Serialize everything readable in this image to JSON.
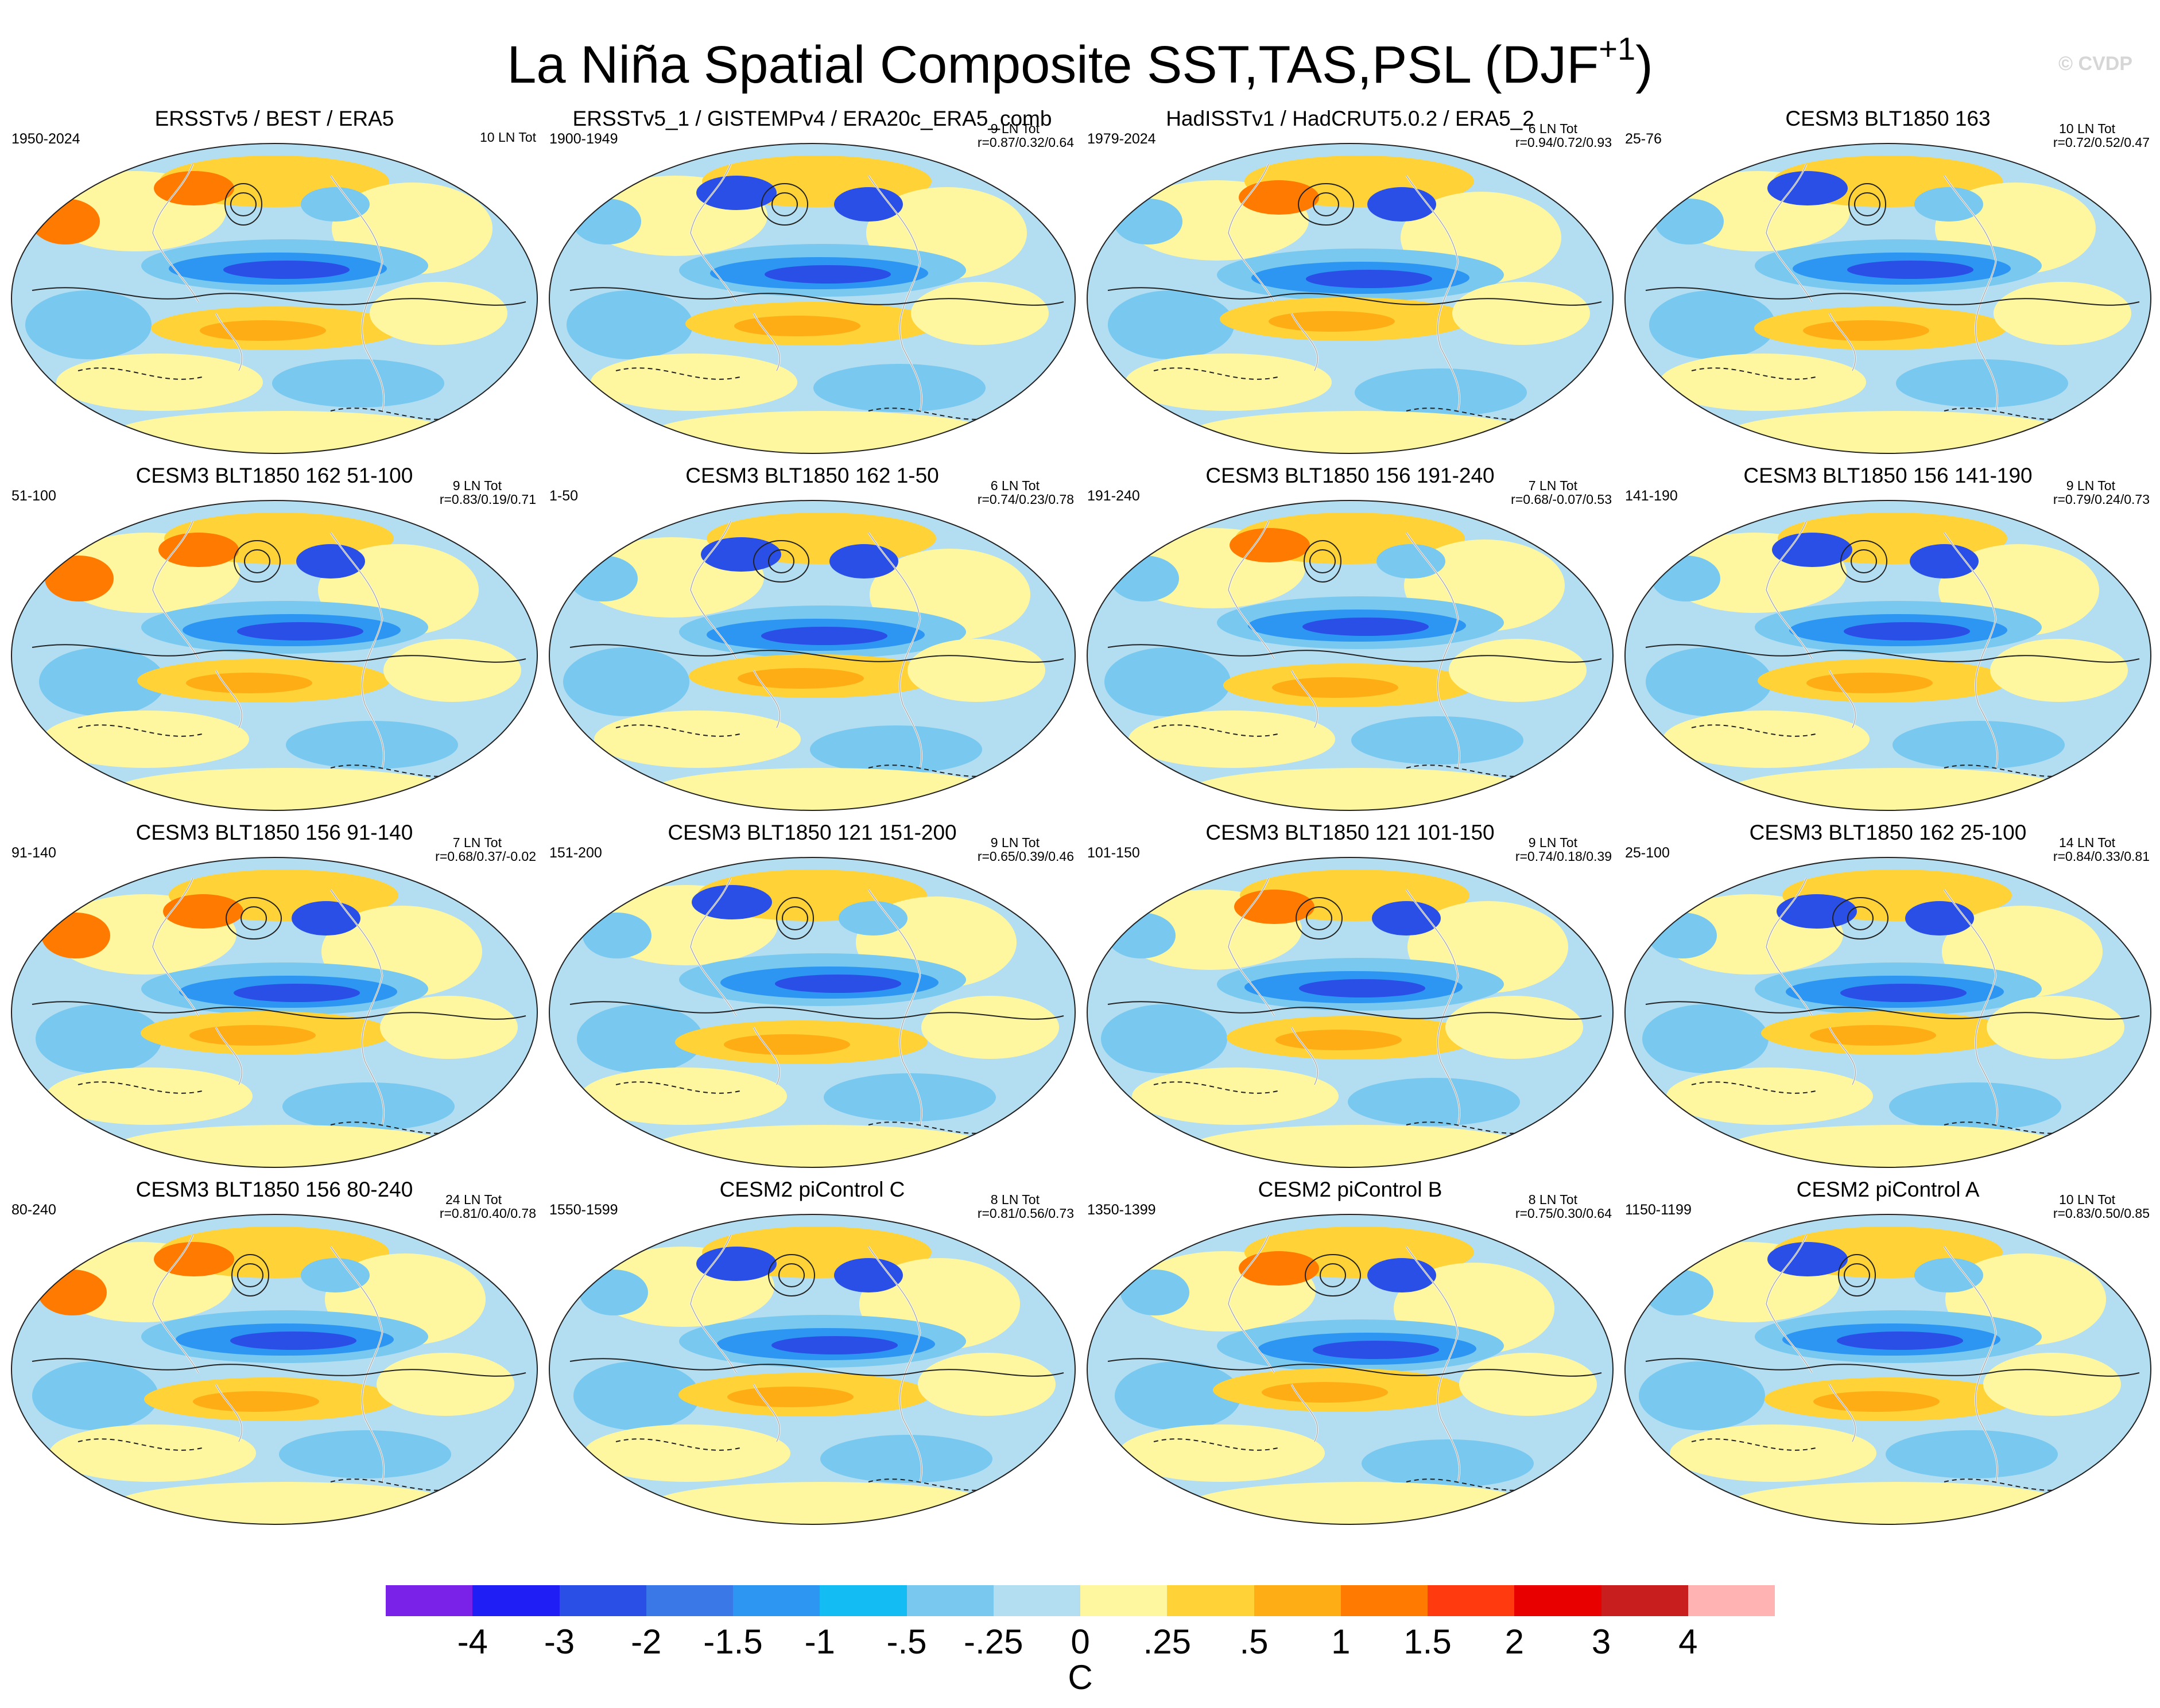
{
  "title_main": "La Niña Spatial Composite SST,TAS,PSL (DJF",
  "title_sup": "+1",
  "title_close": ")",
  "watermark": "© CVDP",
  "panels": [
    {
      "title": "ERSSTv5 / BEST / ERA5",
      "years": "1950-2024",
      "ln": "10 LN Tot",
      "r": ""
    },
    {
      "title": "ERSSTv5_1 / GISTEMPv4 / ERA20c_ERA5_comb",
      "years": "1900-1949",
      "ln": "9 LN Tot",
      "r": "r=0.87/0.32/0.64"
    },
    {
      "title": "HadISSTv1 / HadCRUT5.0.2 / ERA5_2",
      "years": "1979-2024",
      "ln": "6 LN Tot",
      "r": "r=0.94/0.72/0.93"
    },
    {
      "title": "CESM3 BLT1850 163",
      "years": "25-76",
      "ln": "10 LN Tot",
      "r": "r=0.72/0.52/0.47"
    },
    {
      "title": "CESM3 BLT1850 162 51-100",
      "years": "51-100",
      "ln": "9 LN Tot",
      "r": "r=0.83/0.19/0.71"
    },
    {
      "title": "CESM3 BLT1850 162 1-50",
      "years": "1-50",
      "ln": "6 LN Tot",
      "r": "r=0.74/0.23/0.78"
    },
    {
      "title": "CESM3 BLT1850 156 191-240",
      "years": "191-240",
      "ln": "7 LN Tot",
      "r": "r=0.68/-0.07/0.53"
    },
    {
      "title": "CESM3 BLT1850 156 141-190",
      "years": "141-190",
      "ln": "9 LN Tot",
      "r": "r=0.79/0.24/0.73"
    },
    {
      "title": "CESM3 BLT1850 156 91-140",
      "years": "91-140",
      "ln": "7 LN Tot",
      "r": "r=0.68/0.37/-0.02"
    },
    {
      "title": "CESM3 BLT1850 121 151-200",
      "years": "151-200",
      "ln": "9 LN Tot",
      "r": "r=0.65/0.39/0.46"
    },
    {
      "title": "CESM3 BLT1850 121 101-150",
      "years": "101-150",
      "ln": "9 LN Tot",
      "r": "r=0.74/0.18/0.39"
    },
    {
      "title": "CESM3 BLT1850 162 25-100",
      "years": "25-100",
      "ln": "14 LN Tot",
      "r": "r=0.84/0.33/0.81"
    },
    {
      "title": "CESM3 BLT1850 156 80-240",
      "years": "80-240",
      "ln": "24 LN Tot",
      "r": "r=0.81/0.40/0.78"
    },
    {
      "title": "CESM2 piControl C",
      "years": "1550-1599",
      "ln": "8 LN Tot",
      "r": "r=0.81/0.56/0.73"
    },
    {
      "title": "CESM2 piControl B",
      "years": "1350-1399",
      "ln": "8 LN Tot",
      "r": "r=0.75/0.30/0.64"
    },
    {
      "title": "CESM2 piControl A",
      "years": "1150-1199",
      "ln": "10 LN Tot",
      "r": "r=0.83/0.50/0.85"
    }
  ],
  "colorbar": {
    "colors": [
      "#7b22e8",
      "#1f1ff5",
      "#2a4fe6",
      "#3a78e8",
      "#2c96f2",
      "#13bdf3",
      "#78c8ef",
      "#b3def2",
      "#fff7a0",
      "#ffd238",
      "#ffad14",
      "#ff7a00",
      "#ff3a0e",
      "#e80000",
      "#c81e1e",
      "#ffb3b3"
    ],
    "ticks": [
      "-4",
      "-3",
      "-2",
      "-1.5",
      "-1",
      "-.5",
      "-.25",
      "0",
      ".25",
      ".5",
      "1",
      "1.5",
      "2",
      "3",
      "4"
    ],
    "unit": "C"
  }
}
